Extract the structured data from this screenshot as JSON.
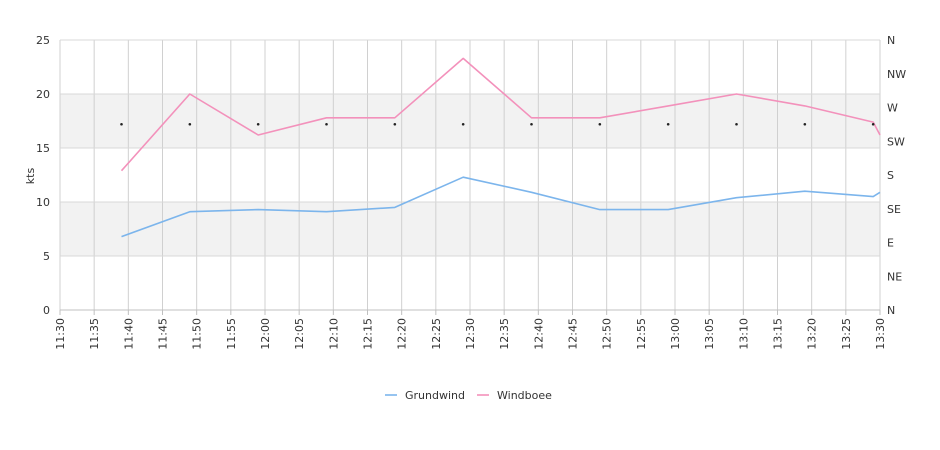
{
  "chart_data": {
    "type": "line",
    "ylabel": "kts",
    "ylim": [
      0,
      25
    ],
    "y_ticks": [
      "0",
      "5",
      "10",
      "15",
      "20",
      "25"
    ],
    "y_bands": [
      [
        5,
        10
      ],
      [
        15,
        20
      ]
    ],
    "x_ticks": [
      "11:30",
      "11:35",
      "11:40",
      "11:45",
      "11:50",
      "11:55",
      "12:00",
      "12:05",
      "12:10",
      "12:15",
      "12:20",
      "12:25",
      "12:30",
      "12:35",
      "12:40",
      "12:45",
      "12:50",
      "12:55",
      "13:00",
      "13:05",
      "13:10",
      "13:15",
      "13:20",
      "13:25",
      "13:30"
    ],
    "x_range": [
      "11:30",
      "13:30"
    ],
    "right_axis_labels": [
      "N",
      "NW",
      "W",
      "SW",
      "S",
      "SE",
      "E",
      "NE",
      "N"
    ],
    "grid": true,
    "legend_position": "bottom-center",
    "series": [
      {
        "name": "Grundwind",
        "color": "#7cb5ec",
        "x": [
          "11:39",
          "11:49",
          "11:59",
          "12:09",
          "12:19",
          "12:29",
          "12:39",
          "12:49",
          "12:59",
          "13:09",
          "13:19",
          "13:29",
          "13:30"
        ],
        "values": [
          6.8,
          9.1,
          9.3,
          9.1,
          9.5,
          12.3,
          10.9,
          9.3,
          9.3,
          10.4,
          11.0,
          10.5,
          10.9
        ]
      },
      {
        "name": "Windboee",
        "color": "#f391bb",
        "x": [
          "11:39",
          "11:49",
          "11:59",
          "12:09",
          "12:19",
          "12:29",
          "12:39",
          "12:49",
          "12:59",
          "13:09",
          "13:19",
          "13:29",
          "13:30"
        ],
        "values": [
          12.9,
          20.0,
          16.2,
          17.8,
          17.8,
          23.3,
          17.8,
          17.8,
          18.9,
          20.0,
          18.9,
          17.4,
          16.2
        ]
      }
    ],
    "direction_markers": {
      "x": [
        "11:39",
        "11:49",
        "11:59",
        "12:09",
        "12:19",
        "12:29",
        "12:39",
        "12:49",
        "12:59",
        "13:09",
        "13:19",
        "13:29"
      ],
      "values": [
        17.2,
        17.2,
        17.2,
        17.2,
        17.2,
        17.2,
        17.2,
        17.2,
        17.2,
        17.2,
        17.2,
        17.2
      ]
    }
  }
}
